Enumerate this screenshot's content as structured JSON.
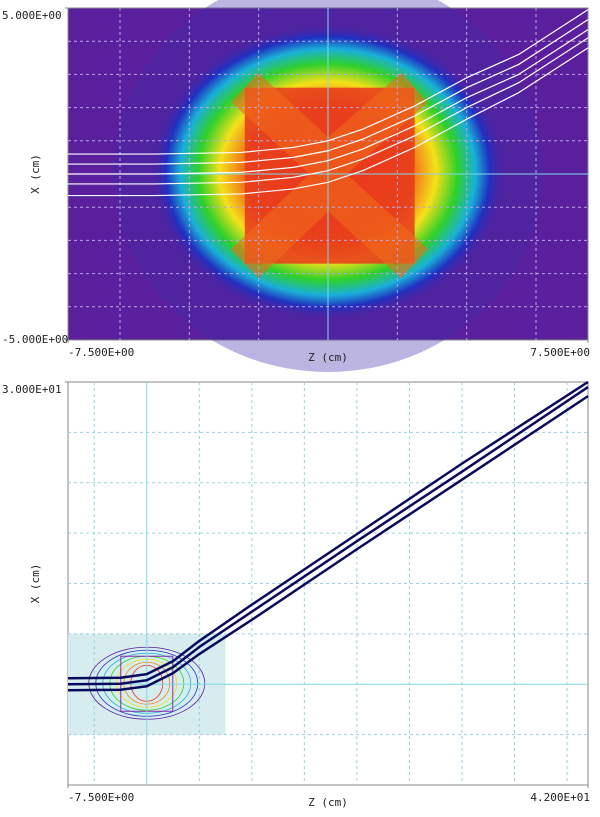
{
  "chart_data": [
    {
      "type": "line",
      "x_label": "Z (cm)",
      "y_label": "X (cm)",
      "xlim": [
        -7.5,
        7.5
      ],
      "ylim": [
        -5,
        5
      ],
      "xticks": [
        {
          "value": -7.5,
          "label": "-7.500E+00"
        },
        {
          "value": 7.5,
          "label": "7.500E+00"
        }
      ],
      "yticks": [
        {
          "value": 5,
          "label": "5.000E+00"
        },
        {
          "value": -5,
          "label": "-5.000E+00"
        }
      ],
      "xgrid": [
        -6,
        -4,
        -2,
        0,
        2,
        4,
        6
      ],
      "ygrid": [
        -4,
        -3,
        -2,
        -1,
        0,
        1,
        2,
        3,
        4
      ],
      "x": [
        -7.5,
        -5,
        -2.5,
        -1,
        0,
        1,
        2.5,
        4,
        5.5,
        7.5
      ],
      "series": [
        {
          "color": "#ffffff",
          "values": [
            -0.65,
            -0.65,
            -0.6,
            -0.45,
            -0.25,
            0.1,
            0.8,
            1.65,
            2.45,
            3.8
          ]
        },
        {
          "color": "#ffffff",
          "values": [
            -0.3,
            -0.3,
            -0.25,
            -0.1,
            0.1,
            0.45,
            1.15,
            2.0,
            2.75,
            4.1
          ]
        },
        {
          "color": "#ffffff",
          "values": [
            0,
            0,
            0.05,
            0.2,
            0.4,
            0.75,
            1.45,
            2.3,
            3.0,
            4.35
          ]
        },
        {
          "color": "#ffffff",
          "values": [
            0.3,
            0.3,
            0.35,
            0.5,
            0.7,
            1.05,
            1.75,
            2.6,
            3.3,
            4.65
          ]
        },
        {
          "color": "#ffffff",
          "values": [
            0.6,
            0.6,
            0.65,
            0.8,
            1.0,
            1.35,
            2.05,
            2.9,
            3.6,
            4.95
          ]
        }
      ]
    },
    {
      "type": "line",
      "x_label": "Z (cm)",
      "y_label": "X (cm)",
      "xlim": [
        -7.5,
        42
      ],
      "ylim": [
        -10,
        30
      ],
      "xticks": [
        {
          "value": -7.5,
          "label": "-7.500E+00"
        },
        {
          "value": 42,
          "label": "4.200E+01"
        }
      ],
      "yticks": [
        {
          "value": 30,
          "label": "3.000E+01"
        }
      ],
      "xgrid": [
        -5,
        0,
        5,
        10,
        15,
        20,
        25,
        30,
        35,
        40
      ],
      "ygrid": [
        -5,
        0,
        5,
        10,
        15,
        20,
        25
      ],
      "x": [
        -7.5,
        -2.5,
        0,
        2.5,
        5,
        10,
        20,
        30,
        42
      ],
      "series": [
        {
          "color": "#0a0a5e",
          "values": [
            -0.6,
            -0.55,
            -0.2,
            1.1,
            3.0,
            6.4,
            13.4,
            20.3,
            28.6
          ]
        },
        {
          "color": "#0a0a5e",
          "values": [
            0,
            0.05,
            0.4,
            1.7,
            3.7,
            7.2,
            14.2,
            21.1,
            29.5
          ]
        },
        {
          "color": "#0a0a5e",
          "values": [
            0.6,
            0.65,
            1.0,
            2.3,
            4.3,
            7.9,
            14.9,
            21.9,
            30
          ]
        }
      ]
    }
  ]
}
